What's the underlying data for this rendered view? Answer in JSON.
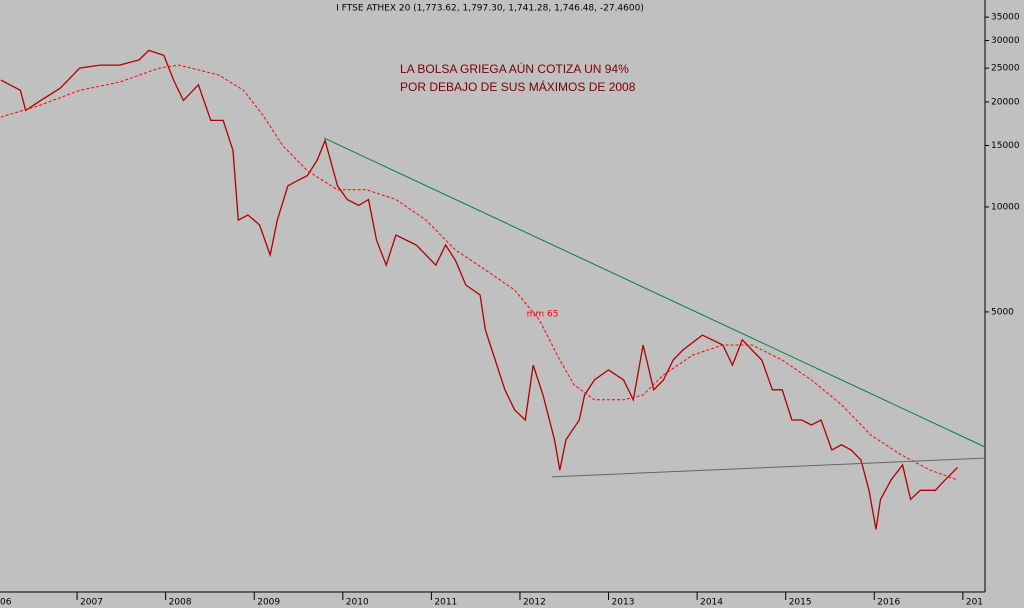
{
  "chart_data": {
    "type": "line",
    "title": "I FTSE ATHEX 20 (1,773.62, 1,797.30, 1,741.28, 1,746.48, -27.4600)",
    "annotations": [
      "LA BOLSA GRIEGA AÚN COTIZA UN 94%",
      "POR DEBAJO DE SUS MÁXIMOS DE 2008"
    ],
    "log_scale": true,
    "grid": false,
    "xlim": [
      2006.13,
      2017.25
    ],
    "xticks": [
      {
        "value": 2006,
        "label": "06"
      },
      2007,
      2008,
      2009,
      2010,
      2011,
      2012,
      2013,
      2014,
      2015,
      2016,
      {
        "value": 2017,
        "label": "201"
      }
    ],
    "ylim": [
      787,
      39200
    ],
    "yticks": [
      5000,
      10000,
      15000,
      20000,
      25000,
      30000,
      35000
    ],
    "x": [
      2006.14,
      2006.36,
      2006.42,
      2006.59,
      2006.81,
      2007.03,
      2007.26,
      2007.48,
      2007.7,
      2007.81,
      2007.98,
      2008.09,
      2008.2,
      2008.37,
      2008.51,
      2008.65,
      2008.76,
      2008.82,
      2008.93,
      2009.06,
      2009.18,
      2009.26,
      2009.38,
      2009.49,
      2009.6,
      2009.71,
      2009.8,
      2009.94,
      2010.05,
      2010.18,
      2010.29,
      2010.38,
      2010.49,
      2010.6,
      2010.83,
      2011.05,
      2011.16,
      2011.27,
      2011.39,
      2011.55,
      2011.61,
      2011.72,
      2011.83,
      2011.94,
      2012.06,
      2012.15,
      2012.26,
      2012.39,
      2012.45,
      2012.52,
      2012.67,
      2012.73,
      2012.84,
      2013.0,
      2013.17,
      2013.28,
      2013.39,
      2013.51,
      2013.62,
      2013.73,
      2013.84,
      2014.06,
      2014.29,
      2014.4,
      2014.51,
      2014.62,
      2014.73,
      2014.85,
      2014.96,
      2015.07,
      2015.18,
      2015.29,
      2015.4,
      2015.52,
      2015.63,
      2015.74,
      2015.85,
      2015.94,
      2016.02,
      2016.07,
      2016.19,
      2016.32,
      2016.41,
      2016.52,
      2016.69,
      2016.8,
      2016.94
    ],
    "series": [
      {
        "color": "#b00000",
        "values": [
          23100,
          21600,
          18900,
          20200,
          21900,
          25000,
          25500,
          25500,
          26400,
          28100,
          27200,
          23100,
          20200,
          22400,
          17700,
          17700,
          14500,
          9170,
          9480,
          8880,
          7280,
          9170,
          11500,
          11900,
          12300,
          13600,
          15500,
          11500,
          10500,
          10100,
          10500,
          8040,
          6810,
          8310,
          7780,
          6810,
          7780,
          7040,
          5970,
          5590,
          4440,
          3640,
          2990,
          2620,
          2450,
          3520,
          2890,
          2150,
          1760,
          2150,
          2450,
          2890,
          3190,
          3410,
          3190,
          2800,
          4020,
          2990,
          3190,
          3640,
          3890,
          4290,
          4020,
          3520,
          4160,
          3890,
          3640,
          2990,
          2990,
          2450,
          2450,
          2370,
          2450,
          2010,
          2080,
          2010,
          1880,
          1540,
          1190,
          1450,
          1650,
          1820,
          1450,
          1540,
          1540,
          1650,
          1790
        ]
      },
      {
        "name": "mm 65",
        "color": "#ff0000",
        "dash": true,
        "x": [
          2006.14,
          2006.59,
          2007.03,
          2007.48,
          2007.93,
          2008.15,
          2008.6,
          2008.88,
          2009.1,
          2009.32,
          2009.6,
          2009.94,
          2010.27,
          2010.6,
          2010.94,
          2011.27,
          2011.61,
          2011.94,
          2012.22,
          2012.45,
          2012.61,
          2012.84,
          2013.17,
          2013.39,
          2013.62,
          2013.95,
          2014.29,
          2014.62,
          2014.96,
          2015.29,
          2015.63,
          2015.96,
          2016.3,
          2016.63,
          2016.94
        ],
        "values": [
          18100,
          19600,
          21600,
          22800,
          25000,
          25500,
          23900,
          21600,
          18300,
          15000,
          12700,
          11200,
          11200,
          10500,
          9170,
          7530,
          6600,
          5780,
          4740,
          3640,
          3090,
          2800,
          2800,
          2890,
          3300,
          3760,
          4020,
          4020,
          3640,
          3190,
          2710,
          2220,
          1950,
          1760,
          1650
        ]
      }
    ],
    "trendlines": [
      {
        "color": "#008040",
        "x": [
          2009.79,
          2017.25
        ],
        "values": [
          15750,
          2050
        ]
      },
      {
        "color": "#666666",
        "x": [
          2012.36,
          2017.25
        ],
        "values": [
          1683,
          1905
        ]
      }
    ]
  }
}
